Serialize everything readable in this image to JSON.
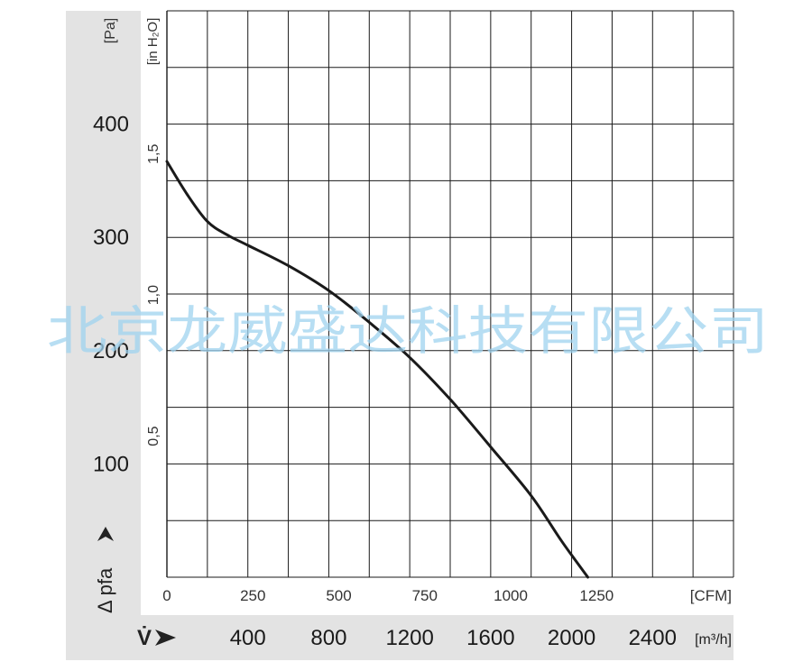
{
  "chart_data": {
    "type": "line",
    "watermark": "北京龙威盛达科技有限公司",
    "pa_unit": "[Pa]",
    "inh2o_unit": "[in H₂O]",
    "cfm_unit": "[CFM]",
    "m3h_unit": "[m³/h]",
    "ylabel": "Δ pfa",
    "flow_symbol": "V̇",
    "pa_ticks": [
      {
        "value": 100,
        "label": "100"
      },
      {
        "value": 200,
        "label": "200"
      },
      {
        "value": 300,
        "label": "300"
      },
      {
        "value": 400,
        "label": "400"
      }
    ],
    "inh2o_ticks": [
      {
        "value": 0.5,
        "label": "0,5"
      },
      {
        "value": 1.0,
        "label": "1,0"
      },
      {
        "value": 1.5,
        "label": "1,5"
      }
    ],
    "cfm_ticks": [
      {
        "value": 0,
        "label": "0"
      },
      {
        "value": 250,
        "label": "250"
      },
      {
        "value": 500,
        "label": "500"
      },
      {
        "value": 750,
        "label": "750"
      },
      {
        "value": 1000,
        "label": "1000"
      },
      {
        "value": 1250,
        "label": "1250"
      }
    ],
    "m3h_ticks": [
      {
        "value": 400,
        "label": "400"
      },
      {
        "value": 800,
        "label": "800"
      },
      {
        "value": 1200,
        "label": "1200"
      },
      {
        "value": 1600,
        "label": "1600"
      },
      {
        "value": 2000,
        "label": "2000"
      },
      {
        "value": 2400,
        "label": "2400"
      }
    ],
    "xlim": [
      0,
      2800
    ],
    "ylim": [
      0,
      500
    ],
    "grid": true,
    "series": [
      {
        "color": "#1a1a1a",
        "points": [
          {
            "x": 0,
            "y": 367
          },
          {
            "x": 100,
            "y": 338
          },
          {
            "x": 200,
            "y": 314
          },
          {
            "x": 300,
            "y": 302
          },
          {
            "x": 400,
            "y": 293
          },
          {
            "x": 600,
            "y": 275
          },
          {
            "x": 800,
            "y": 253
          },
          {
            "x": 1000,
            "y": 225
          },
          {
            "x": 1200,
            "y": 194
          },
          {
            "x": 1400,
            "y": 157
          },
          {
            "x": 1600,
            "y": 115
          },
          {
            "x": 1800,
            "y": 72
          },
          {
            "x": 1950,
            "y": 32
          },
          {
            "x": 2080,
            "y": 0
          }
        ]
      }
    ]
  }
}
